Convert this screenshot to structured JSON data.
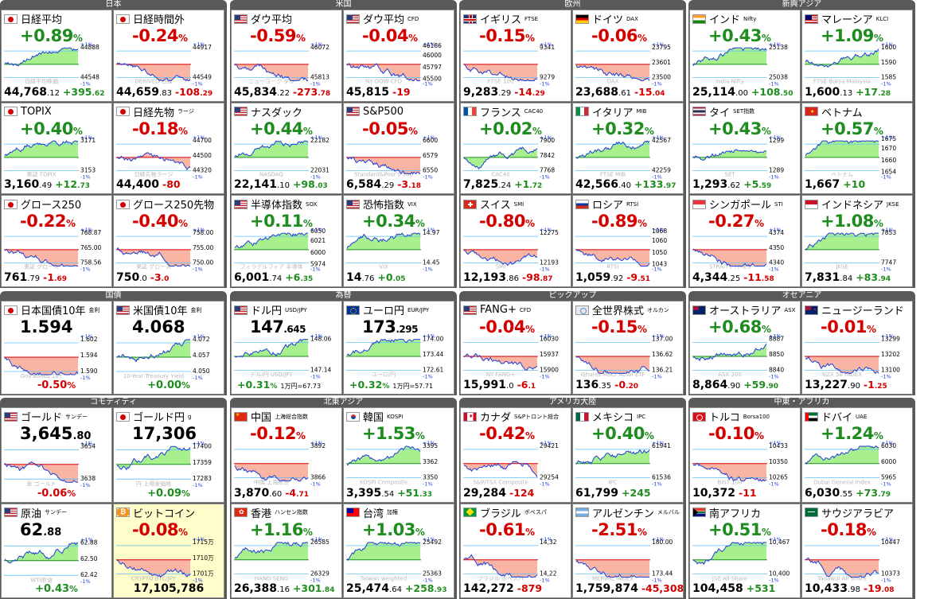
{
  "groups": [
    {
      "title": "日本",
      "panels": [
        {
          "name": "日経平均",
          "sub": "",
          "flag": "jp",
          "change": "+0.89",
          "pct": "%",
          "price": "44,768",
          "dec": ".12",
          "diff": "+395",
          "diffdec": ".62",
          "dir": "up",
          "axis": [
            "44888",
            "44548"
          ],
          "watermark": "日経平均株価"
        },
        {
          "name": "日経時間外",
          "sub": "",
          "flag": "jp",
          "change": "-0.24",
          "pct": "%",
          "price": "44,659",
          "dec": ".83",
          "diff": "-108",
          "diffdec": ".29",
          "dir": "down",
          "axis": [
            "44917",
            "44549"
          ],
          "watermark": "DERIVED 日経"
        },
        {
          "name": "TOPIX",
          "sub": "",
          "flag": "jp",
          "change": "+0.40",
          "pct": "%",
          "price": "3,160",
          "dec": ".49",
          "diff": "+12",
          "diffdec": ".73",
          "dir": "up",
          "axis": [
            "3171",
            "3153"
          ],
          "watermark": "東証 TOPIX"
        },
        {
          "name": "日経先物",
          "sub": "ラージ",
          "flag": "jp",
          "change": "-0.18",
          "pct": "%",
          "price": "44,400",
          "dec": "",
          "diff": "-80",
          "diffdec": "",
          "dir": "down",
          "axis": [
            "44700",
            "44500",
            "44320"
          ],
          "watermark": "日経先物ラージ"
        },
        {
          "name": "グロース250",
          "sub": "",
          "flag": "jp",
          "change": "-0.22",
          "pct": "%",
          "price": "761",
          "dec": ".79",
          "diff": "-1",
          "diffdec": ".69",
          "dir": "down",
          "axis": [
            "768.87",
            "765.00",
            "758.56"
          ],
          "watermark": "東証 グロース"
        },
        {
          "name": "グロース250先物",
          "sub": "",
          "flag": "jp",
          "change": "-0.40",
          "pct": "%",
          "price": "750",
          "dec": ".0",
          "diff": "-3",
          "diffdec": ".0",
          "dir": "down",
          "axis": [
            "758.00",
            "755.00",
            "750.00"
          ],
          "watermark": "東証 グロース"
        }
      ]
    },
    {
      "title": "米国",
      "panels": [
        {
          "name": "ダウ平均",
          "sub": "",
          "flag": "us",
          "change": "-0.59",
          "pct": "%",
          "price": "45,834",
          "dec": ".22",
          "diff": "-273",
          "diffdec": ".78",
          "dir": "down",
          "axis": [
            "46072",
            "45813"
          ],
          "watermark": "ニューヨーク ダウ"
        },
        {
          "name": "ダウ平均",
          "sub": "CFD",
          "flag": "us",
          "change": "-0.04",
          "pct": "%",
          "price": "45,815",
          "dec": "",
          "diff": "-19",
          "diffdec": "",
          "dir": "down",
          "axis": [
            "46186",
            "46000",
            "45797",
            "45500"
          ],
          "watermark": "NY DOW CFD"
        },
        {
          "name": "ナスダック",
          "sub": "",
          "flag": "us",
          "change": "+0.44",
          "pct": "%",
          "price": "22,141",
          "dec": ".10",
          "diff": "+98",
          "diffdec": ".03",
          "dir": "up",
          "axis": [
            "22182",
            "22031"
          ],
          "watermark": "NASDAQ"
        },
        {
          "name": "S&P500",
          "sub": "",
          "flag": "us",
          "change": "-0.05",
          "pct": "%",
          "price": "6,584",
          "dec": ".29",
          "diff": "-3",
          "diffdec": ".18",
          "dir": "down",
          "axis": [
            "6600",
            "6579",
            "6550"
          ],
          "watermark": "Standard&Poor's 500"
        },
        {
          "name": "半導体指数",
          "sub": "SOX",
          "flag": "us",
          "change": "+0.11",
          "pct": "%",
          "price": "6,001",
          "dec": ".74",
          "diff": "+6",
          "diffdec": ".35",
          "dir": "up",
          "axis": [
            "6050",
            "6021",
            "6000",
            "5974"
          ],
          "watermark": "フィラデルフィア 半導体"
        },
        {
          "name": "恐怖指数",
          "sub": "VIX",
          "flag": "us",
          "change": "+0.34",
          "pct": "%",
          "price": "14",
          "dec": ".76",
          "diff": "+0",
          "diffdec": ".05",
          "dir": "up",
          "axis": [
            "14.97",
            "14.45"
          ],
          "watermark": "VIX"
        }
      ]
    },
    {
      "title": "欧州",
      "panels": [
        {
          "name": "イギリス",
          "sub": "FTSE",
          "flag": "gb",
          "change": "-0.15",
          "pct": "%",
          "price": "9,283",
          "dec": ".29",
          "diff": "-14",
          "diffdec": ".29",
          "dir": "down",
          "axis": [
            "9341",
            "9279"
          ],
          "watermark": "FTSE 100"
        },
        {
          "name": "ドイツ",
          "sub": "DAX",
          "flag": "de",
          "change": "-0.06",
          "pct": "%",
          "price": "23,688",
          "dec": ".61",
          "diff": "-15",
          "diffdec": ".04",
          "dir": "down",
          "axis": [
            "23795",
            "23601",
            "23500"
          ],
          "watermark": "DAX"
        },
        {
          "name": "フランス",
          "sub": "CAC40",
          "flag": "fr",
          "change": "+0.02",
          "pct": "%",
          "price": "7,825",
          "dec": ".24",
          "diff": "+1",
          "diffdec": ".72",
          "dir": "up",
          "axis": [
            "7900",
            "7842",
            "7768"
          ],
          "watermark": "CAC40"
        },
        {
          "name": "イタリア",
          "sub": "MIB",
          "flag": "it",
          "change": "+0.32",
          "pct": "%",
          "price": "42,566",
          "dec": ".40",
          "diff": "+133",
          "diffdec": ".97",
          "dir": "up",
          "axis": [
            "42567",
            "42259"
          ],
          "watermark": "FTSE MIB"
        },
        {
          "name": "スイス",
          "sub": "SMI",
          "flag": "ch",
          "change": "-0.80",
          "pct": "%",
          "price": "12,193",
          "dec": ".86",
          "diff": "-98",
          "diffdec": ".87",
          "dir": "down",
          "axis": [
            "12275",
            "12193"
          ],
          "watermark": "SMI"
        },
        {
          "name": "ロシア",
          "sub": "RTSI",
          "flag": "ru",
          "change": "-0.89",
          "pct": "%",
          "price": "1,059",
          "dec": ".92",
          "diff": "-9",
          "diffdec": ".51",
          "dir": "down",
          "axis": [
            "1068",
            "1060",
            "1050",
            "1043"
          ],
          "watermark": "RTSI"
        }
      ]
    },
    {
      "title": "新興アジア",
      "panels": [
        {
          "name": "インド",
          "sub": "Nifty",
          "flag": "in",
          "change": "+0.43",
          "pct": "%",
          "price": "25,114",
          "dec": ".00",
          "diff": "+108",
          "diffdec": ".50",
          "dir": "up",
          "axis": [
            "25138",
            "25038"
          ],
          "watermark": "India Nifty"
        },
        {
          "name": "マレーシア",
          "sub": "KLCI",
          "flag": "my",
          "change": "+1.09",
          "pct": "%",
          "price": "1,600",
          "dec": ".13",
          "diff": "+17",
          "diffdec": ".28",
          "dir": "up",
          "axis": [
            "1600",
            "1590",
            "1585"
          ],
          "watermark": "FTSE Bursa Malaysia"
        },
        {
          "name": "タイ",
          "sub": "SET指数",
          "flag": "th",
          "change": "+0.43",
          "pct": "%",
          "price": "1,293",
          "dec": ".62",
          "diff": "+5",
          "diffdec": ".59",
          "dir": "up",
          "axis": [
            "1299",
            "1289"
          ],
          "watermark": "SET"
        },
        {
          "name": "ベトナム",
          "sub": "",
          "flag": "vn",
          "change": "+0.57",
          "pct": "%",
          "price": "1,667",
          "dec": "",
          "diff": "+10",
          "diffdec": "",
          "dir": "up",
          "axis": [
            "1675",
            "1670",
            "1660",
            "1654"
          ],
          "watermark": "ベトナム"
        },
        {
          "name": "シンガポール",
          "sub": "STI",
          "flag": "sg",
          "change": "-0.27",
          "pct": "%",
          "price": "4,344",
          "dec": ".25",
          "diff": "-11",
          "diffdec": ".58",
          "dir": "down",
          "axis": [
            "4374",
            "4350",
            "4340"
          ],
          "watermark": "STRAITS TIMES"
        },
        {
          "name": "インドネシア",
          "sub": "JKSE",
          "flag": "id",
          "change": "+1.08",
          "pct": "%",
          "price": "7,831",
          "dec": ".84",
          "diff": "+83",
          "diffdec": ".94",
          "dir": "up",
          "axis": [
            "7853",
            "7747"
          ],
          "watermark": "JKSE"
        }
      ]
    },
    {
      "title": "国債",
      "panels": [
        {
          "name": "日本国債10年",
          "sub": "金利",
          "flag": "jp",
          "bond": true,
          "value": "1.594",
          "valdec": "",
          "bondchg": "-0.50",
          "pct": "%",
          "dir": "down",
          "axis": [
            "1.602",
            "1.594",
            "1.590"
          ],
          "watermark": "Gov.Bonds 10Y"
        },
        {
          "name": "米国債10年",
          "sub": "金利",
          "flag": "us",
          "bond": true,
          "value": "4.068",
          "valdec": "",
          "bondchg": "+0.00",
          "pct": "%",
          "dir": "up",
          "axis": [
            "4.072",
            "4.057",
            "4.050"
          ],
          "watermark": "10-Year Treasury Yield"
        }
      ]
    },
    {
      "title": "為替",
      "panels": [
        {
          "name": "ドル円",
          "sub": "USD/JPY",
          "flag": "us",
          "fx": true,
          "value": "147",
          "valdec": ".645",
          "fxchg": "+0.31",
          "pct": "%",
          "extra": "1万円=67.73",
          "dir": "up",
          "axis": [
            "148.06",
            "147.14"
          ],
          "watermark": "ドル/円 USD/JPY"
        },
        {
          "name": "ユーロ円",
          "sub": "EUR/JPY",
          "flag": "eu",
          "fx": true,
          "value": "173",
          "valdec": ".295",
          "fxchg": "+0.32",
          "pct": "%",
          "extra": "1万円=57.71",
          "dir": "up",
          "axis": [
            "174.00",
            "173.44",
            "172.61"
          ],
          "watermark": "ユーロ/円"
        }
      ]
    },
    {
      "title": "ピックアップ",
      "panels": [
        {
          "name": "FANG+",
          "sub": "CFD",
          "flag": "us",
          "change": "-0.04",
          "pct": "%",
          "price": "15,991",
          "dec": ".0",
          "diff": "-6",
          "diffdec": ".1",
          "dir": "down",
          "axis": [
            "16030",
            "15937",
            "15900"
          ],
          "watermark": "NY FANG+"
        },
        {
          "name": "全世界株式",
          "sub": "オルカン",
          "flag": "un",
          "change": "-0.15",
          "pct": "%",
          "price": "136",
          "dec": ".35",
          "diff": "-0",
          "diffdec": ".20",
          "dir": "down",
          "axis": [
            "137.00",
            "136.62",
            "136.21"
          ],
          "watermark": "iShares MSCI ACWI ETF"
        }
      ]
    },
    {
      "title": "オセアニア",
      "panels": [
        {
          "name": "オーストラリア",
          "sub": "ASX",
          "flag": "au",
          "change": "+0.68",
          "pct": "%",
          "price": "8,864",
          "dec": ".90",
          "diff": "+59",
          "diffdec": ".90",
          "dir": "up",
          "axis": [
            "8887",
            "8850",
            "8840"
          ],
          "watermark": "ASX 200"
        },
        {
          "name": "ニュージーランド",
          "sub": "",
          "flag": "nz",
          "change": "-0.01",
          "pct": "%",
          "price": "13,227",
          "dec": ".90",
          "diff": "-1",
          "diffdec": ".25",
          "dir": "down",
          "axis": [
            "13299",
            "13202",
            "13100"
          ],
          "watermark": "NZX 50 INDEX"
        }
      ]
    },
    {
      "title": "コモディティ",
      "panels": [
        {
          "name": "ゴールド",
          "sub": "サンデー",
          "flag": "us",
          "bond": true,
          "value": "3,645",
          "valdec": ".80",
          "bondchg": "-0.06",
          "pct": "%",
          "dir": "down",
          "axis": [
            "3654",
            "3638"
          ],
          "watermark": "金 ゴールド"
        },
        {
          "name": "ゴールド円",
          "sub": "g",
          "flag": "jp",
          "bond": true,
          "value": "17,306",
          "valdec": "",
          "bondchg": "+0.09",
          "pct": "%",
          "dir": "up",
          "axis": [
            "17400",
            "17359",
            "17283"
          ],
          "watermark": "円 上場金価格"
        },
        {
          "name": "原油",
          "sub": "サンデー",
          "flag": "us",
          "bond": true,
          "value": "62",
          "valdec": ".88",
          "bondchg": "+0.43",
          "pct": "%",
          "dir": "up",
          "axis": [
            "62.88",
            "62.50",
            "62.42"
          ],
          "watermark": "WTI原油"
        },
        {
          "name": "ビットコイン",
          "sub": "",
          "flag": "btc",
          "btc": true,
          "change": "-0.08",
          "pct": "%",
          "price": "17,105,786",
          "dir": "down",
          "axis": [
            "1715万",
            "1710万",
            "1701万"
          ],
          "watermark": "CRYPTO BTC/JPY"
        }
      ]
    },
    {
      "title": "北東アジア",
      "panels": [
        {
          "name": "中国",
          "sub": "上海総合指数",
          "flag": "cn",
          "change": "-0.12",
          "pct": "%",
          "price": "3,870",
          "dec": ".60",
          "diff": "-4",
          "diffdec": ".71",
          "dir": "down",
          "axis": [
            "3892",
            "3866"
          ],
          "watermark": "中国 上海総合"
        },
        {
          "name": "韓国",
          "sub": "KOSPI",
          "flag": "kr",
          "change": "+1.53",
          "pct": "%",
          "price": "3,395",
          "dec": ".54",
          "diff": "+51",
          "diffdec": ".33",
          "dir": "up",
          "axis": [
            "3395",
            "3362",
            "3350"
          ],
          "watermark": "KOSPI Composite"
        },
        {
          "name": "香港",
          "sub": "ハンセン指数",
          "flag": "hk",
          "change": "+1.16",
          "pct": "%",
          "price": "26,388",
          "dec": ".16",
          "diff": "+301",
          "diffdec": ".84",
          "dir": "up",
          "axis": [
            "26585",
            "26329"
          ],
          "watermark": "HANG SENG"
        },
        {
          "name": "台湾",
          "sub": "加権",
          "flag": "tw",
          "change": "+1.03",
          "pct": "%",
          "price": "25,474",
          "dec": ".64",
          "diff": "+258",
          "diffdec": ".93",
          "dir": "up",
          "axis": [
            "25492",
            "25363"
          ],
          "watermark": "Taiwan weighted"
        }
      ]
    },
    {
      "title": "アメリカ大陸",
      "panels": [
        {
          "name": "カナダ",
          "sub": "S&Pトロント総合",
          "flag": "ca",
          "change": "-0.42",
          "pct": "%",
          "price": "29,284",
          "dec": "",
          "diff": "-124",
          "diffdec": "",
          "dir": "down",
          "axis": [
            "29421",
            "29254"
          ],
          "watermark": "S&P/TSX Composite"
        },
        {
          "name": "メキシコ",
          "sub": "IPC",
          "flag": "mx",
          "change": "+0.40",
          "pct": "%",
          "price": "61,799",
          "dec": "",
          "diff": "+245",
          "diffdec": "",
          "dir": "up",
          "axis": [
            "61941",
            "61536"
          ],
          "watermark": "IPC"
        },
        {
          "name": "ブラジル",
          "sub": "ボベスパ",
          "flag": "br",
          "change": "-0.61",
          "pct": "%",
          "price": "142,272",
          "dec": "",
          "diff": "-879",
          "diffdec": "",
          "dir": "down",
          "axis": [
            "14,32",
            "14,22"
          ],
          "watermark": "ブラジル ボベスパ"
        },
        {
          "name": "アルゼンチン",
          "sub": "メルバル",
          "flag": "ar",
          "change": "-2.51",
          "pct": "%",
          "price": "1,759,874",
          "dec": "",
          "diff": "-45,308",
          "diffdec": "",
          "dir": "down",
          "axis": [
            "180.00",
            "173.44"
          ],
          "watermark": "MERVAL INDEX"
        }
      ]
    },
    {
      "title": "中東・アフリカ",
      "panels": [
        {
          "name": "トルコ",
          "sub": "Borsa100",
          "flag": "tr",
          "change": "-0.10",
          "pct": "%",
          "price": "10,372",
          "dec": "",
          "diff": "-11",
          "diffdec": "",
          "dir": "down",
          "axis": [
            "10433",
            "10350",
            "10265"
          ],
          "watermark": "BIST 100"
        },
        {
          "name": "ドバイ",
          "sub": "UAE",
          "flag": "ae",
          "change": "+1.24",
          "pct": "%",
          "price": "6,030",
          "dec": ".55",
          "diff": "+73",
          "diffdec": ".79",
          "dir": "up",
          "axis": [
            "6030",
            "6000",
            "5965"
          ],
          "watermark": "Dubai General Index"
        },
        {
          "name": "南アフリカ",
          "sub": "",
          "flag": "za",
          "change": "+0.51",
          "pct": "%",
          "price": "104,458",
          "dec": "",
          "diff": "+531",
          "diffdec": "",
          "dir": "up",
          "axis": [
            "10,467",
            "10,400"
          ],
          "watermark": "JSE All Share"
        },
        {
          "name": "サウジアラビア",
          "sub": "",
          "flag": "sa",
          "change": "-0.18",
          "pct": "%",
          "price": "10,433",
          "dec": ".98",
          "diff": "-19",
          "diffdec": ".08",
          "dir": "down",
          "axis": [
            "10447",
            "10373"
          ],
          "watermark": "Tadawul All Share"
        }
      ]
    }
  ],
  "labels": {
    "plus1": "+1%",
    "minus1": "-1%"
  },
  "colors": {
    "up": "#1e8c1e",
    "down": "#d40000",
    "upfill": "#a8ef8e",
    "downfill": "#f9b4a4",
    "line": "#1f3fd6",
    "header": "#595959"
  }
}
